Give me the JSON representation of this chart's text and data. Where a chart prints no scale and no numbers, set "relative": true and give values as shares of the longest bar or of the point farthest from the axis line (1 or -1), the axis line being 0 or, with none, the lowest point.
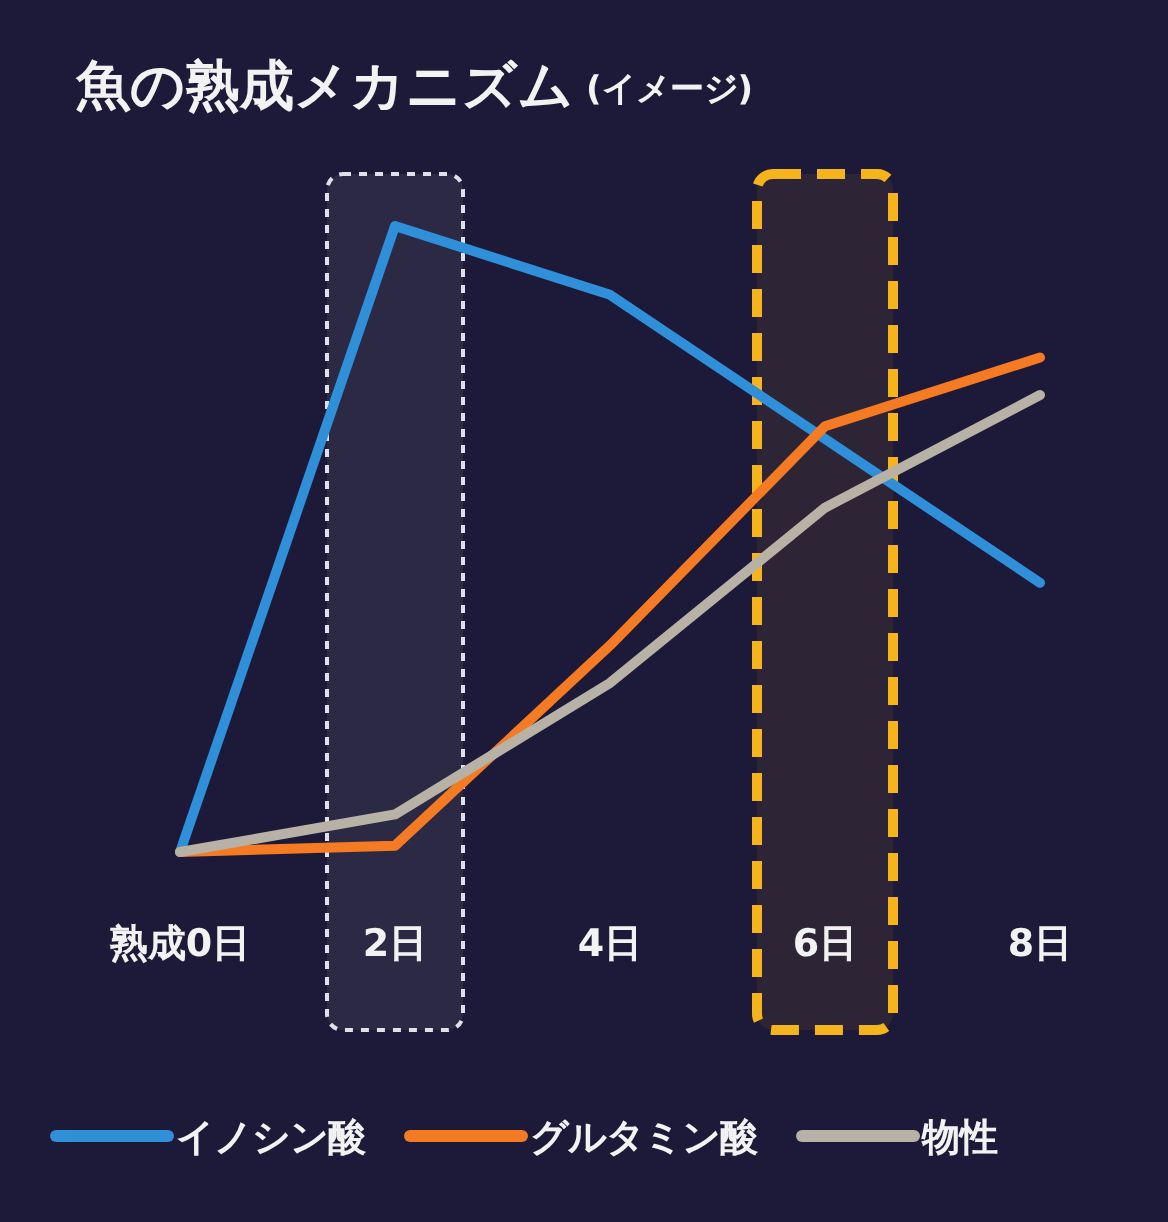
{
  "chart_data": {
    "type": "line",
    "title": "魚の熟成メカニズム",
    "subtitle": "(イメージ)",
    "relative": true,
    "categories": [
      "熟成0日",
      "2日",
      "4日",
      "6日",
      "8日"
    ],
    "series": [
      {
        "name": "イノシン酸",
        "color": "#2f8fd8",
        "values": [
          0,
          1,
          0.89,
          0.66,
          0.43
        ]
      },
      {
        "name": "グルタミン酸",
        "color": "#f47a24",
        "values": [
          0,
          0.01,
          0.33,
          0.68,
          0.79
        ]
      },
      {
        "name": "物性",
        "color": "#b8b2a6",
        "values": [
          0,
          0.06,
          0.27,
          0.55,
          0.73
        ]
      }
    ],
    "bands": [
      {
        "axis": "x",
        "from": "2日",
        "to": "2日",
        "color": "#e0e0e8"
      },
      {
        "axis": "x",
        "from": "6日",
        "to": "6日",
        "color": "#f5b41c"
      }
    ],
    "legend": "bottom",
    "marker": "none",
    "line_style": "solid"
  }
}
